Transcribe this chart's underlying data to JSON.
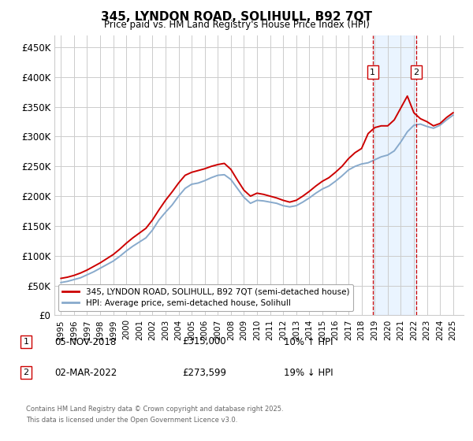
{
  "title": "345, LYNDON ROAD, SOLIHULL, B92 7QT",
  "subtitle": "Price paid vs. HM Land Registry's House Price Index (HPI)",
  "legend_line1": "345, LYNDON ROAD, SOLIHULL, B92 7QT (semi-detached house)",
  "legend_line2": "HPI: Average price, semi-detached house, Solihull",
  "annotation1_date": "05-NOV-2018",
  "annotation1_price": "£315,000",
  "annotation1_hpi": "10% ↑ HPI",
  "annotation2_date": "02-MAR-2022",
  "annotation2_price": "£273,599",
  "annotation2_hpi": "19% ↓ HPI",
  "footnote1": "Contains HM Land Registry data © Crown copyright and database right 2025.",
  "footnote2": "This data is licensed under the Open Government Licence v3.0.",
  "red_color": "#cc0000",
  "blue_color": "#88aacc",
  "background_shading": "#ddeeff",
  "ylim": [
    0,
    470000
  ],
  "yticks": [
    0,
    50000,
    100000,
    150000,
    200000,
    250000,
    300000,
    350000,
    400000,
    450000
  ],
  "ytick_labels": [
    "£0",
    "£50K",
    "£100K",
    "£150K",
    "£200K",
    "£250K",
    "£300K",
    "£350K",
    "£400K",
    "£450K"
  ],
  "sale1_year": 2018.85,
  "sale2_year": 2022.17,
  "years_hpi": [
    1995.0,
    1995.5,
    1996.0,
    1996.5,
    1997.0,
    1997.5,
    1998.0,
    1998.5,
    1999.0,
    1999.5,
    2000.0,
    2000.5,
    2001.0,
    2001.5,
    2002.0,
    2002.5,
    2003.0,
    2003.5,
    2004.0,
    2004.5,
    2005.0,
    2005.5,
    2006.0,
    2006.5,
    2007.0,
    2007.5,
    2008.0,
    2008.5,
    2009.0,
    2009.5,
    2010.0,
    2010.5,
    2011.0,
    2011.5,
    2012.0,
    2012.5,
    2013.0,
    2013.5,
    2014.0,
    2014.5,
    2015.0,
    2015.5,
    2016.0,
    2016.5,
    2017.0,
    2017.5,
    2018.0,
    2018.5,
    2019.0,
    2019.5,
    2020.0,
    2020.5,
    2021.0,
    2021.5,
    2022.0,
    2022.5,
    2023.0,
    2023.5,
    2024.0,
    2024.5,
    2025.0
  ],
  "hpi_values": [
    55000,
    57000,
    60000,
    63000,
    68000,
    73000,
    79000,
    85000,
    91000,
    99000,
    108000,
    116000,
    123000,
    130000,
    143000,
    160000,
    173000,
    185000,
    200000,
    213000,
    220000,
    222000,
    226000,
    231000,
    235000,
    236000,
    228000,
    213000,
    198000,
    188000,
    193000,
    192000,
    190000,
    188000,
    184000,
    182000,
    184000,
    190000,
    197000,
    205000,
    212000,
    217000,
    225000,
    234000,
    244000,
    250000,
    254000,
    256000,
    261000,
    266000,
    269000,
    276000,
    291000,
    308000,
    319000,
    321000,
    317000,
    314000,
    319000,
    328000,
    336000
  ],
  "red_values": [
    62000,
    64000,
    67000,
    71000,
    76000,
    82000,
    88000,
    95000,
    102000,
    111000,
    121000,
    130000,
    138000,
    146000,
    160000,
    177000,
    193000,
    207000,
    222000,
    235000,
    240000,
    243000,
    246000,
    250000,
    253000,
    255000,
    245000,
    227000,
    210000,
    200000,
    205000,
    203000,
    200000,
    197000,
    193000,
    190000,
    193000,
    200000,
    208000,
    217000,
    225000,
    231000,
    240000,
    250000,
    263000,
    273000,
    280000,
    305000,
    315000,
    318000,
    318000,
    328000,
    348000,
    368000,
    340000,
    330000,
    325000,
    318000,
    322000,
    332000,
    340000
  ]
}
